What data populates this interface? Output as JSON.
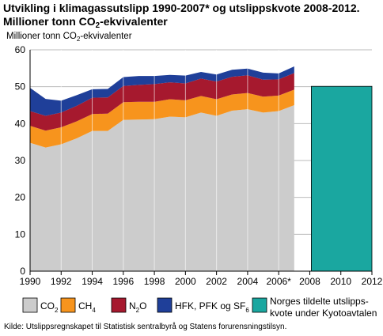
{
  "title": {
    "line1": "Utvikling i klimagassutslipp 1990-2007* og utslippskvote 2008-2012.",
    "line2_prefix": "Millioner tonn CO",
    "line2_sub": "2",
    "line2_suffix": "-ekvivalenter"
  },
  "source": "Kilde: Utslippsregnskapet til Statistisk sentralbyrå og Statens forurensningstilsyn.",
  "chart_data": {
    "type": "area",
    "stacked": true,
    "ylabel": {
      "prefix": "Millioner tonn CO",
      "sub": "2",
      "suffix": "-ekvivalenter"
    },
    "ylim": [
      0,
      60
    ],
    "yticks": [
      0,
      10,
      20,
      30,
      40,
      50,
      60
    ],
    "xlim": [
      1990,
      2012
    ],
    "xticks": [
      {
        "value": 1990,
        "label": "1990"
      },
      {
        "value": 1992,
        "label": "1992"
      },
      {
        "value": 1994,
        "label": "1994"
      },
      {
        "value": 1996,
        "label": "1996"
      },
      {
        "value": 1998,
        "label": "1998"
      },
      {
        "value": 2000,
        "label": "2000"
      },
      {
        "value": 2002,
        "label": "2002"
      },
      {
        "value": 2004,
        "label": "2004"
      },
      {
        "value": 2006,
        "label": "2006*"
      },
      {
        "value": 2008,
        "label": "2008"
      },
      {
        "value": 2010,
        "label": "2010"
      },
      {
        "value": 2012,
        "label": "2012"
      }
    ],
    "grid": true,
    "legend_position": "bottom",
    "x": [
      1990,
      1991,
      1992,
      1993,
      1994,
      1995,
      1996,
      1997,
      1998,
      1999,
      2000,
      2001,
      2002,
      2003,
      2004,
      2005,
      2006,
      2007
    ],
    "series": [
      {
        "name": "CO",
        "name_sub": "2",
        "color": "#cccccc",
        "values": [
          34.8,
          33.5,
          34.4,
          36.0,
          38.0,
          38.0,
          41.0,
          41.1,
          41.2,
          41.9,
          41.7,
          43.0,
          42.1,
          43.5,
          43.9,
          43.0,
          43.4,
          45.0
        ]
      },
      {
        "name": "CH",
        "name_sub": "4",
        "color": "#f7941d",
        "values": [
          4.6,
          4.6,
          4.6,
          4.6,
          4.6,
          4.7,
          4.8,
          4.8,
          4.7,
          4.7,
          4.6,
          4.5,
          4.5,
          4.4,
          4.4,
          4.3,
          4.2,
          4.2
        ]
      },
      {
        "name": "N",
        "name_sub": "2",
        "name_suffix": "O",
        "color": "#a6192e",
        "values": [
          4.0,
          4.0,
          4.0,
          4.2,
          4.4,
          4.4,
          4.4,
          4.6,
          4.8,
          4.6,
          4.6,
          4.7,
          4.8,
          4.8,
          4.8,
          4.6,
          4.4,
          4.5
        ]
      },
      {
        "name": "HFK, PFK og SF",
        "name_sub": "6",
        "color": "#1f3f99",
        "values": [
          6.3,
          4.6,
          3.2,
          2.9,
          2.3,
          2.3,
          2.4,
          2.4,
          2.2,
          2.0,
          2.1,
          1.8,
          1.9,
          1.9,
          1.8,
          1.9,
          1.6,
          1.8
        ]
      }
    ],
    "quota": {
      "name_line1": "Norges tildelte utslipps-",
      "name_line2": "kvote under Kyotoavtalen",
      "color": "#1aa7a0",
      "x_start": 2008,
      "x_end": 2012,
      "value": 50.1
    }
  }
}
